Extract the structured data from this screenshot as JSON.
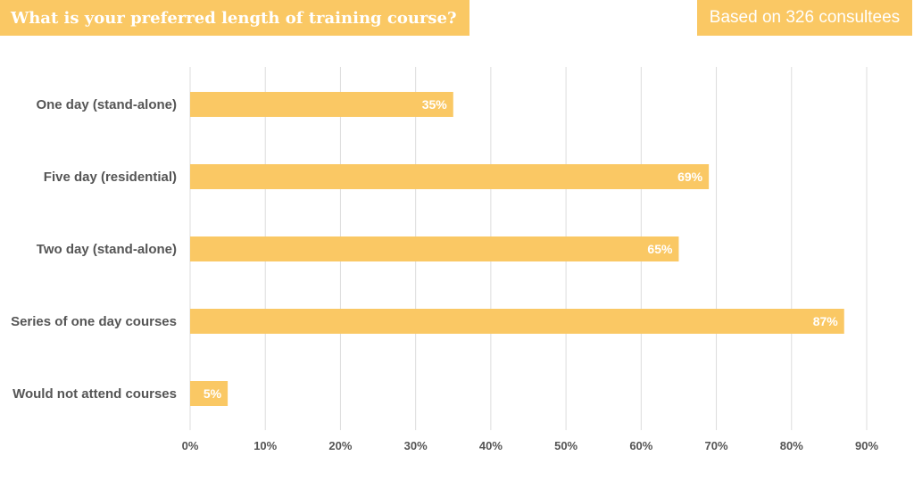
{
  "header": {
    "title": "What is your preferred length of training course?",
    "badge": "Based on 326 consultees"
  },
  "colors": {
    "bar": "#fac864",
    "grid": "#dcdcdc",
    "text": "#555555",
    "header_text": "#ffffff"
  },
  "chart_data": {
    "type": "bar",
    "orientation": "horizontal",
    "categories": [
      "One day (stand-alone)",
      "Five day (residential)",
      "Two day (stand-alone)",
      "Series of one day courses",
      "Would not attend courses"
    ],
    "values": [
      35,
      69,
      65,
      87,
      5
    ],
    "data_labels": [
      "35%",
      "69%",
      "65%",
      "87%",
      "5%"
    ],
    "xlim": [
      0,
      90
    ],
    "x_ticks": [
      0,
      10,
      20,
      30,
      40,
      50,
      60,
      70,
      80,
      90
    ],
    "x_tick_labels": [
      "0%",
      "10%",
      "20%",
      "30%",
      "40%",
      "50%",
      "60%",
      "70%",
      "80%",
      "90%"
    ],
    "grid": true,
    "legend": false
  }
}
